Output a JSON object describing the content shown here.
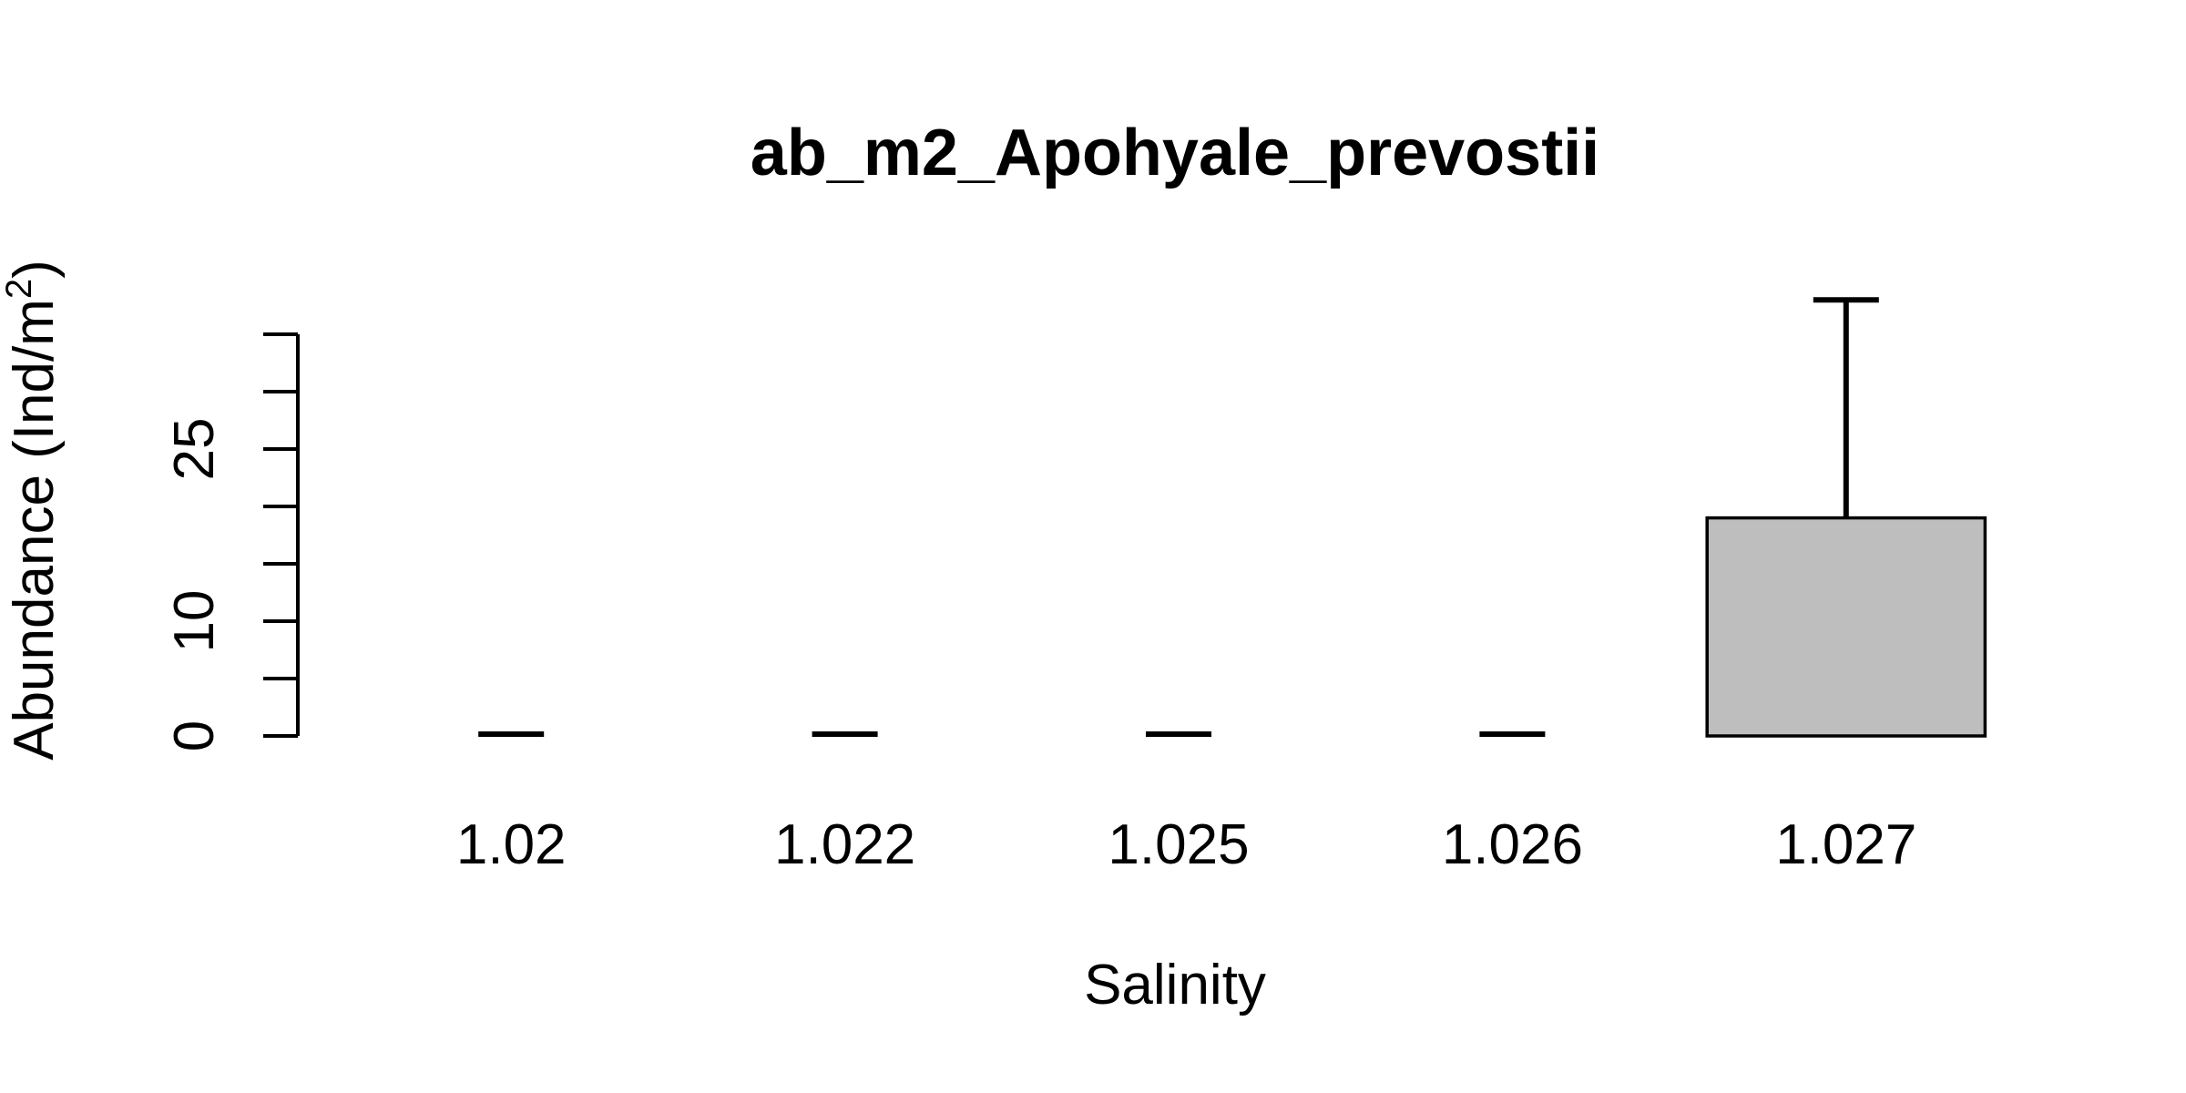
{
  "chart_data": {
    "type": "bar",
    "title": "ab_m2_Apohyale_prevostii",
    "xlabel": "Salinity",
    "ylabel": "Abundance (Ind/m",
    "ylabel_superscript": "2",
    "ylabel_close": ")",
    "categories": [
      "1.02",
      "1.022",
      "1.025",
      "1.026",
      "1.027"
    ],
    "values": [
      0,
      0,
      0,
      0,
      19
    ],
    "error_upper": [
      0,
      0,
      0,
      0,
      38
    ],
    "ylim": [
      0,
      35
    ],
    "yticks": [
      0,
      5,
      10,
      15,
      20,
      25,
      30,
      35
    ],
    "ytick_labels": [
      "0",
      "10",
      "25"
    ],
    "bar_color": "#bebebe",
    "grid": false,
    "legend": "none"
  }
}
